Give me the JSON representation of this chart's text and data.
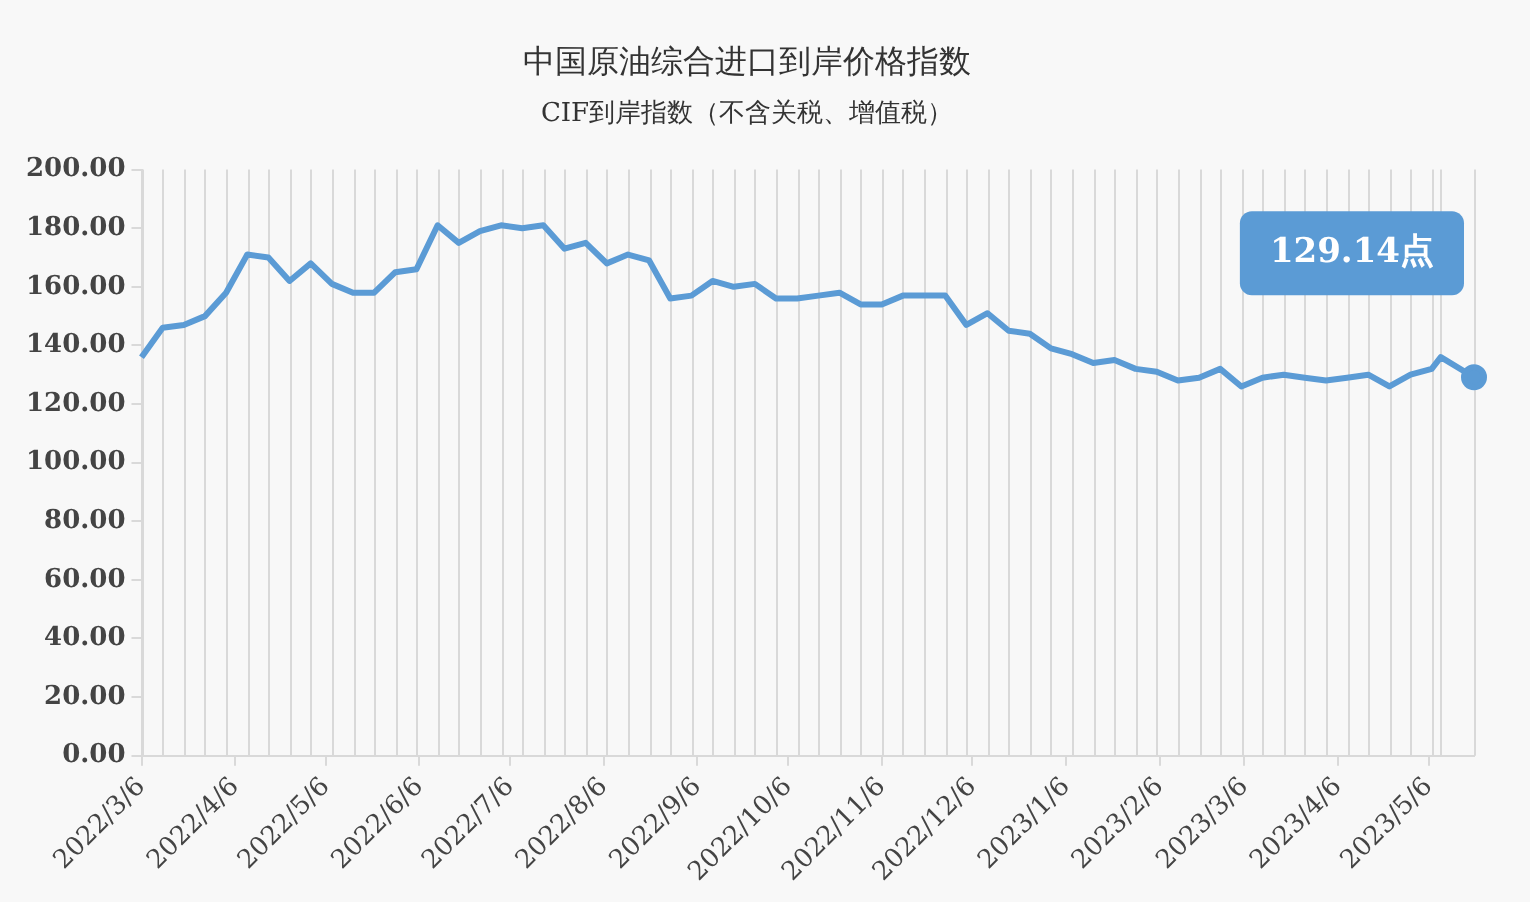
{
  "chart_data": {
    "type": "line",
    "title": "中国原油综合进口到岸价格指数",
    "subtitle": "CIF到岸指数（不含关税、增值税）",
    "x": [
      "2022-03-06",
      "2022-03-13",
      "2022-03-20",
      "2022-03-27",
      "2022-04-03",
      "2022-04-10",
      "2022-04-17",
      "2022-04-24",
      "2022-05-01",
      "2022-05-08",
      "2022-05-15",
      "2022-05-22",
      "2022-05-29",
      "2022-06-05",
      "2022-06-12",
      "2022-06-19",
      "2022-06-26",
      "2022-07-03",
      "2022-07-10",
      "2022-07-17",
      "2022-07-24",
      "2022-07-31",
      "2022-08-07",
      "2022-08-14",
      "2022-08-21",
      "2022-08-28",
      "2022-09-04",
      "2022-09-11",
      "2022-09-18",
      "2022-09-25",
      "2022-10-02",
      "2022-10-09",
      "2022-10-16",
      "2022-10-23",
      "2022-10-30",
      "2022-11-06",
      "2022-11-13",
      "2022-11-20",
      "2022-11-27",
      "2022-12-04",
      "2022-12-11",
      "2022-12-18",
      "2022-12-25",
      "2023-01-01",
      "2023-01-08",
      "2023-01-15",
      "2023-01-22",
      "2023-01-29",
      "2023-02-05",
      "2023-02-12",
      "2023-02-19",
      "2023-02-26",
      "2023-03-05",
      "2023-03-12",
      "2023-03-19",
      "2023-03-26",
      "2023-04-02",
      "2023-04-09",
      "2023-04-16",
      "2023-04-23",
      "2023-04-30",
      "2023-05-07",
      "2023-05-10",
      "2023-05-21"
    ],
    "series": [
      {
        "color": "#5b9bd5",
        "values": [
          136,
          146,
          147,
          150,
          158,
          171,
          170,
          162,
          168,
          161,
          158,
          158,
          165,
          166,
          181,
          175,
          179,
          181,
          180,
          181,
          173,
          175,
          168,
          171,
          169,
          156,
          157,
          162,
          160,
          161,
          156,
          156,
          157,
          158,
          154,
          154,
          157,
          157,
          157,
          147,
          151,
          145,
          144,
          139,
          137,
          134,
          135,
          132,
          131,
          128,
          129,
          132,
          126,
          129,
          130,
          129,
          128,
          129,
          130,
          126,
          130,
          132,
          136,
          129.14
        ]
      }
    ],
    "xlim": [
      "2022-03-06",
      "2023-05-21"
    ],
    "xticks": [
      {
        "value": "2022-03-06",
        "label": "2022/3/6"
      },
      {
        "value": "2022-04-06",
        "label": "2022/4/6"
      },
      {
        "value": "2022-05-06",
        "label": "2022/5/6"
      },
      {
        "value": "2022-06-06",
        "label": "2022/6/6"
      },
      {
        "value": "2022-07-06",
        "label": "2022/7/6"
      },
      {
        "value": "2022-08-06",
        "label": "2022/8/6"
      },
      {
        "value": "2022-09-06",
        "label": "2022/9/6"
      },
      {
        "value": "2022-10-06",
        "label": "2022/10/6"
      },
      {
        "value": "2022-11-06",
        "label": "2022/11/6"
      },
      {
        "value": "2022-12-06",
        "label": "2022/12/6"
      },
      {
        "value": "2023-01-06",
        "label": "2023/1/6"
      },
      {
        "value": "2023-02-06",
        "label": "2023/2/6"
      },
      {
        "value": "2023-03-06",
        "label": "2023/3/6"
      },
      {
        "value": "2023-04-06",
        "label": "2023/4/6"
      },
      {
        "value": "2023-05-06",
        "label": "2023/5/6"
      }
    ],
    "ylim": [
      0,
      200
    ],
    "yticks": [
      {
        "value": 0,
        "label": "0.00"
      },
      {
        "value": 20,
        "label": "20.00"
      },
      {
        "value": 40,
        "label": "40.00"
      },
      {
        "value": 60,
        "label": "60.00"
      },
      {
        "value": 80,
        "label": "80.00"
      },
      {
        "value": 100,
        "label": "100.00"
      },
      {
        "value": 120,
        "label": "120.00"
      },
      {
        "value": 140,
        "label": "140.00"
      },
      {
        "value": 160,
        "label": "160.00"
      },
      {
        "value": 180,
        "label": "180.00"
      },
      {
        "value": 200,
        "label": "200.00"
      }
    ],
    "grid": "x",
    "legend": false,
    "line_style": "solid",
    "annotations": [
      "129.14点"
    ]
  }
}
